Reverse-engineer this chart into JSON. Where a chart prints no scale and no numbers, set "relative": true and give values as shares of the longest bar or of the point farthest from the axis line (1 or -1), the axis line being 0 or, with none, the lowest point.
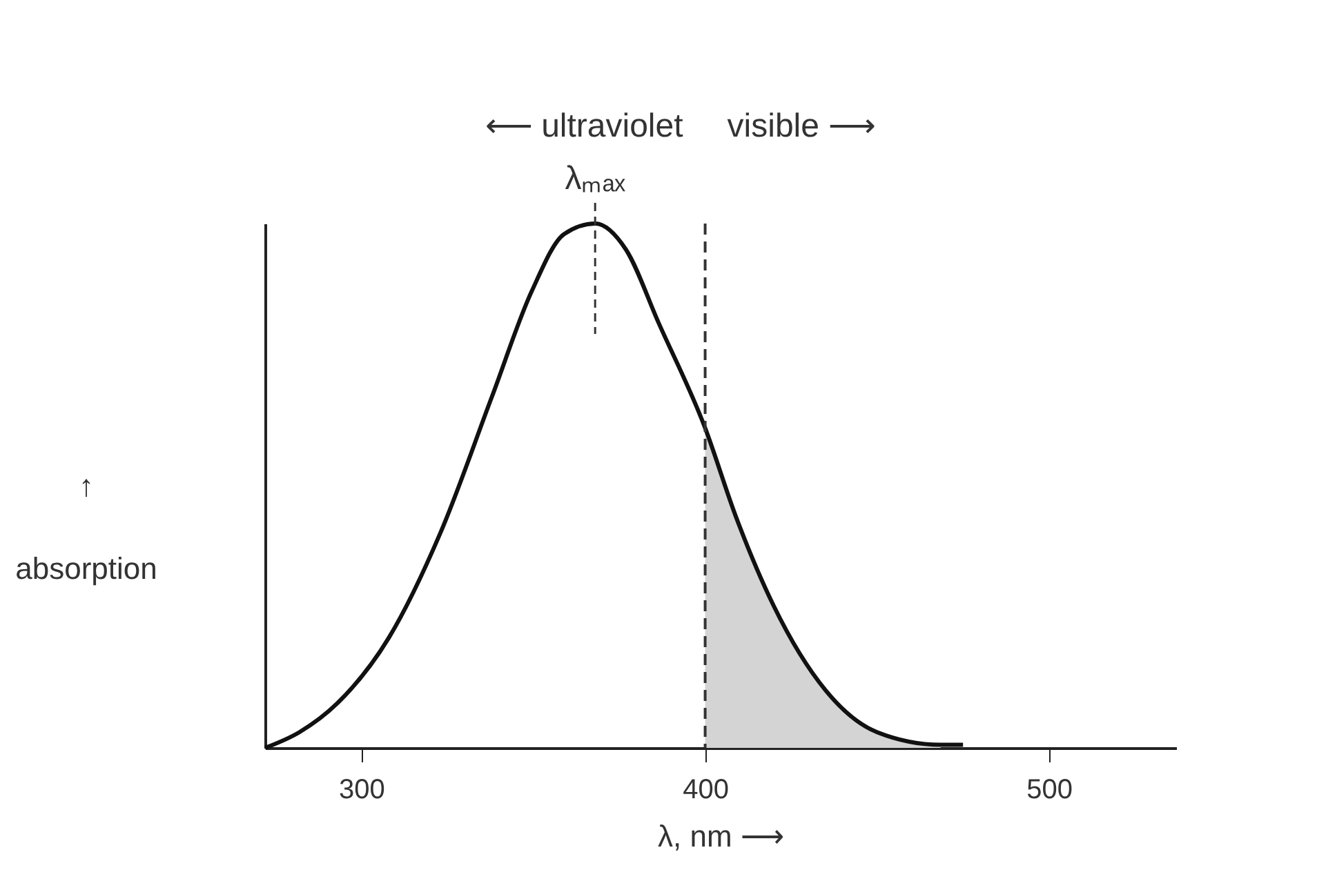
{
  "chart_data": {
    "type": "line",
    "relative": true,
    "xlabel": "λ, nm ⟶",
    "ylabel": "↑ absorption",
    "xlim": [
      272,
      537
    ],
    "xticks": [
      300,
      400,
      500
    ],
    "grid": false,
    "marker": "none",
    "tick_labels": "x",
    "series": [
      {
        "color": "#111111",
        "line_style": "solid",
        "x": [
          272,
          282,
          293,
          308,
          323,
          338,
          349.5,
          359,
          368,
          377,
          386.5,
          400,
          409,
          420,
          435,
          450,
          468.5,
          475
        ],
        "values": [
          0,
          0.03,
          0.085,
          0.21,
          0.41,
          0.67,
          0.87,
          0.98,
          1.0,
          0.95,
          0.81,
          0.61,
          0.44,
          0.27,
          0.11,
          0.03,
          0.006,
          0.006
        ]
      },
      {
        "type": "area",
        "color": "#d4d4d4",
        "x": [
          400,
          409,
          420,
          435,
          450,
          468.5
        ],
        "values": [
          0.61,
          0.44,
          0.27,
          0.11,
          0.03,
          0.006
        ]
      }
    ],
    "ref_lines": [
      {
        "axis": "x",
        "value": 400,
        "line_style": "dashed",
        "color": "#333333"
      }
    ],
    "annotations": [
      "⟵ ultraviolet",
      "visible ⟶",
      "λₘₐₓ"
    ]
  }
}
